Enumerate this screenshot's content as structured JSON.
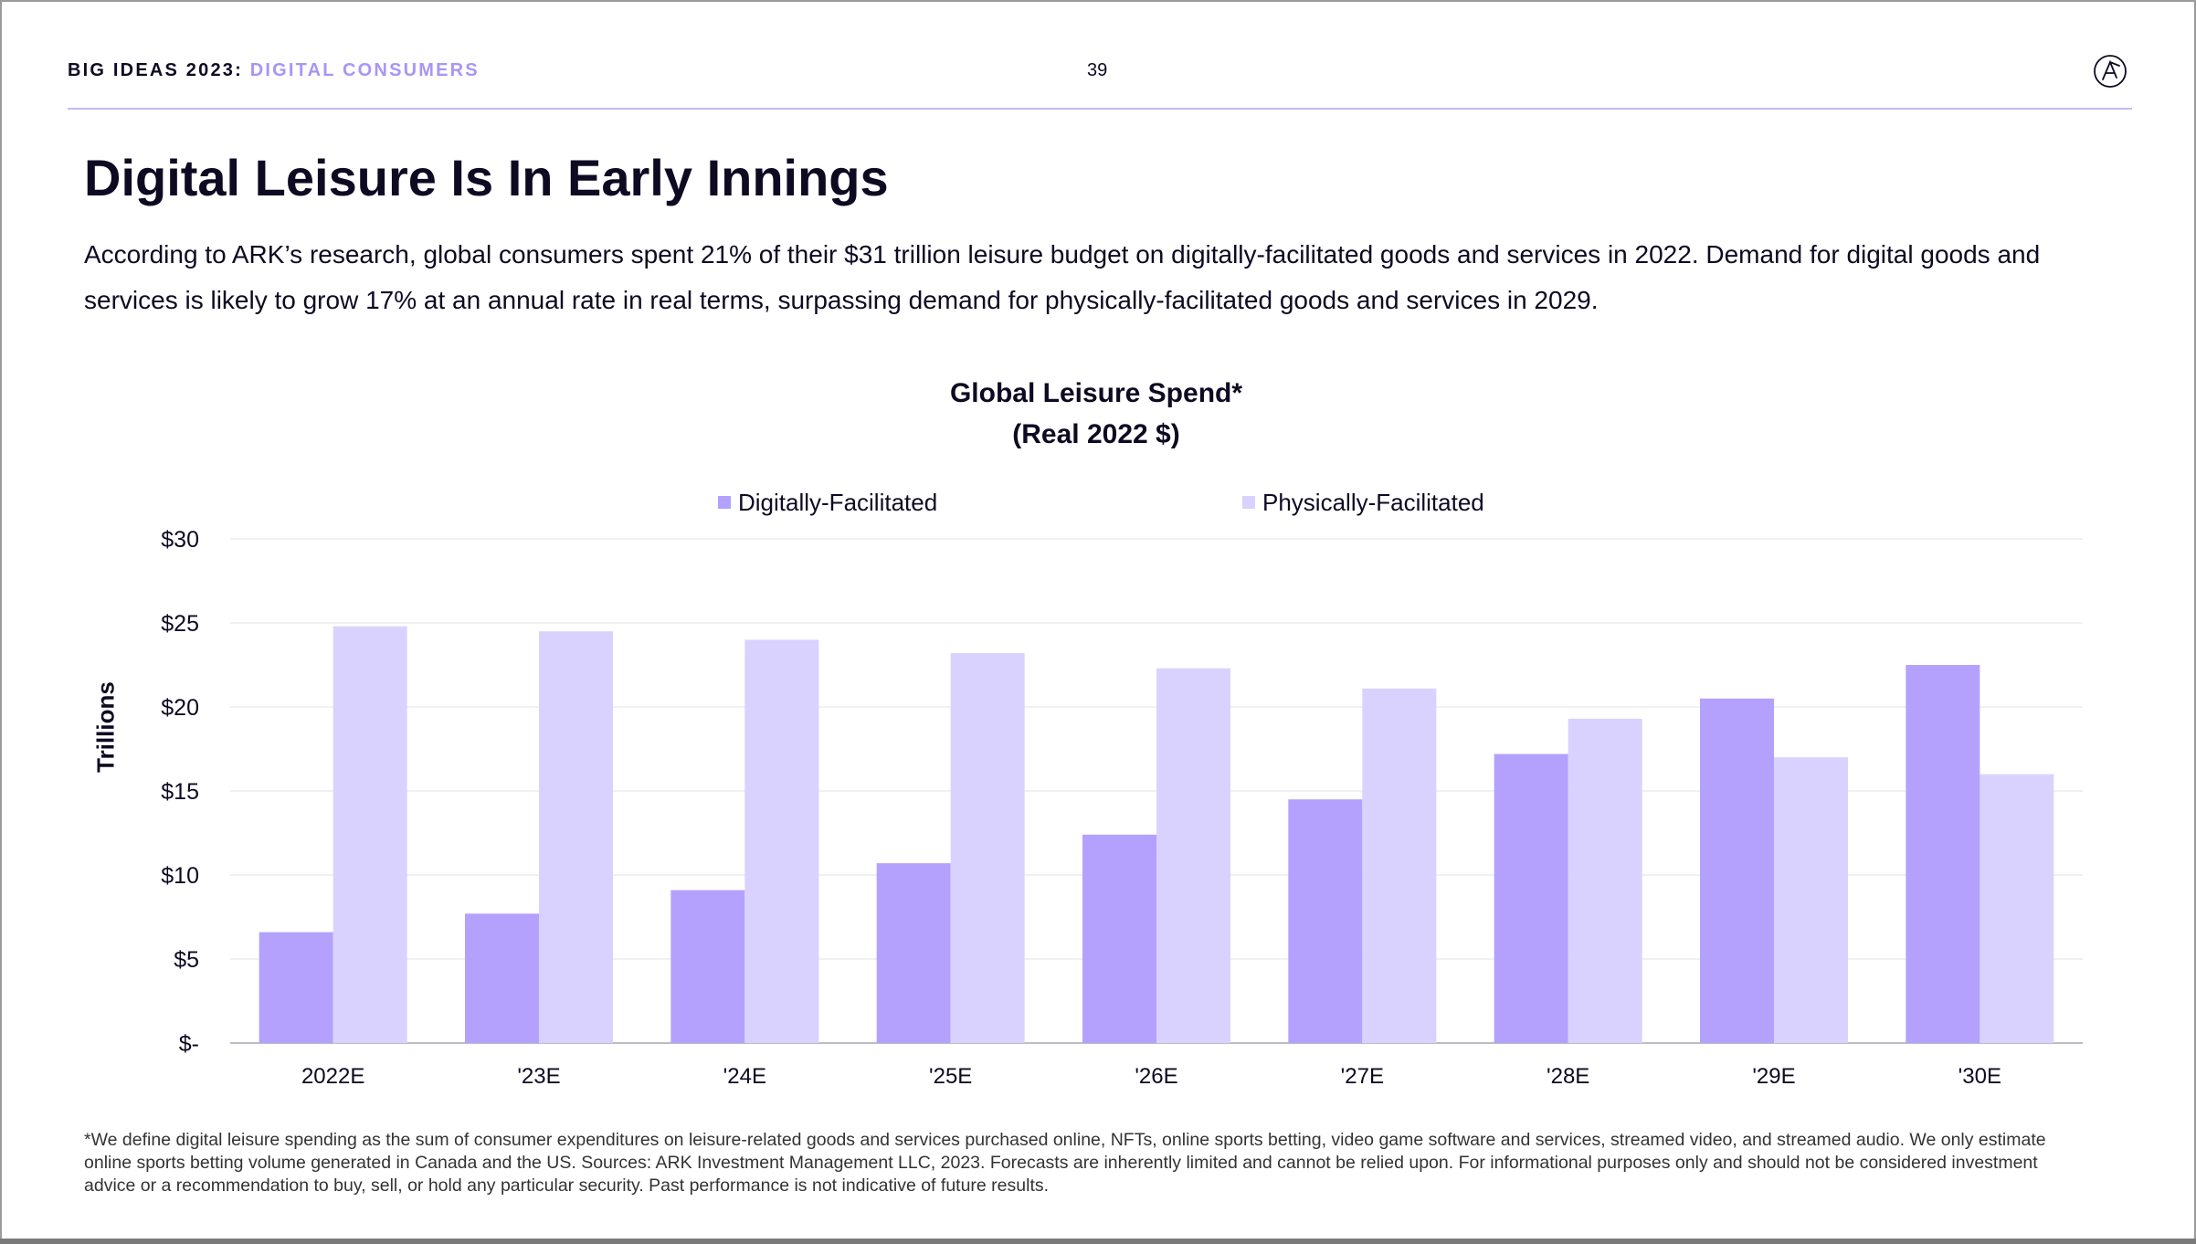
{
  "header": {
    "series": "BIG IDEAS 2023:",
    "topic": "DIGITAL CONSUMERS",
    "page_number": "39",
    "logo_icon": "ark-logo-icon"
  },
  "title": "Digital Leisure Is In Early Innings",
  "lead": "According to ARK’s research, global consumers spent 21% of their $31 trillion leisure budget on digitally-facilitated goods and services in 2022. Demand for digital goods and services is likely to grow 17% at an annual rate in real terms, surpassing demand for physically-facilitated goods and services in 2029.",
  "footnote": "*We define digital leisure spending as the sum of consumer expenditures on leisure-related goods and services purchased online, NFTs, online sports betting, video game software and services, streamed video, and streamed audio. We only estimate online sports betting volume generated in Canada and the US. Sources: ARK Investment Management LLC, 2023. Forecasts are inherently limited and cannot be relied upon. For informational purposes only and should not be considered investment advice or a recommendation to buy, sell, or hold any particular security. Past performance is not indicative of future results.",
  "chart_data": {
    "type": "bar",
    "title": "Global Leisure Spend*",
    "subtitle": "(Real 2022 $)",
    "xlabel": "",
    "ylabel": "Trillions",
    "ylim": [
      0,
      30
    ],
    "yticks": [
      0,
      5,
      10,
      15,
      20,
      25,
      30
    ],
    "ytick_labels": [
      "$-",
      "$5",
      "$10",
      "$15",
      "$20",
      "$25",
      "$30"
    ],
    "grid": true,
    "legend_position": "top-center",
    "categories": [
      "2022E",
      "'23E",
      "'24E",
      "'25E",
      "'26E",
      "'27E",
      "'28E",
      "'29E",
      "'30E"
    ],
    "series": [
      {
        "name": "Digitally-Facilitated",
        "color": "#b3a1fd",
        "values": [
          6.6,
          7.7,
          9.1,
          10.7,
          12.4,
          14.5,
          17.2,
          20.5,
          22.5
        ]
      },
      {
        "name": "Physically-Facilitated",
        "color": "#dad2fe",
        "values": [
          24.8,
          24.5,
          24.0,
          23.2,
          22.3,
          21.1,
          19.3,
          17.0,
          16.0
        ]
      }
    ]
  }
}
